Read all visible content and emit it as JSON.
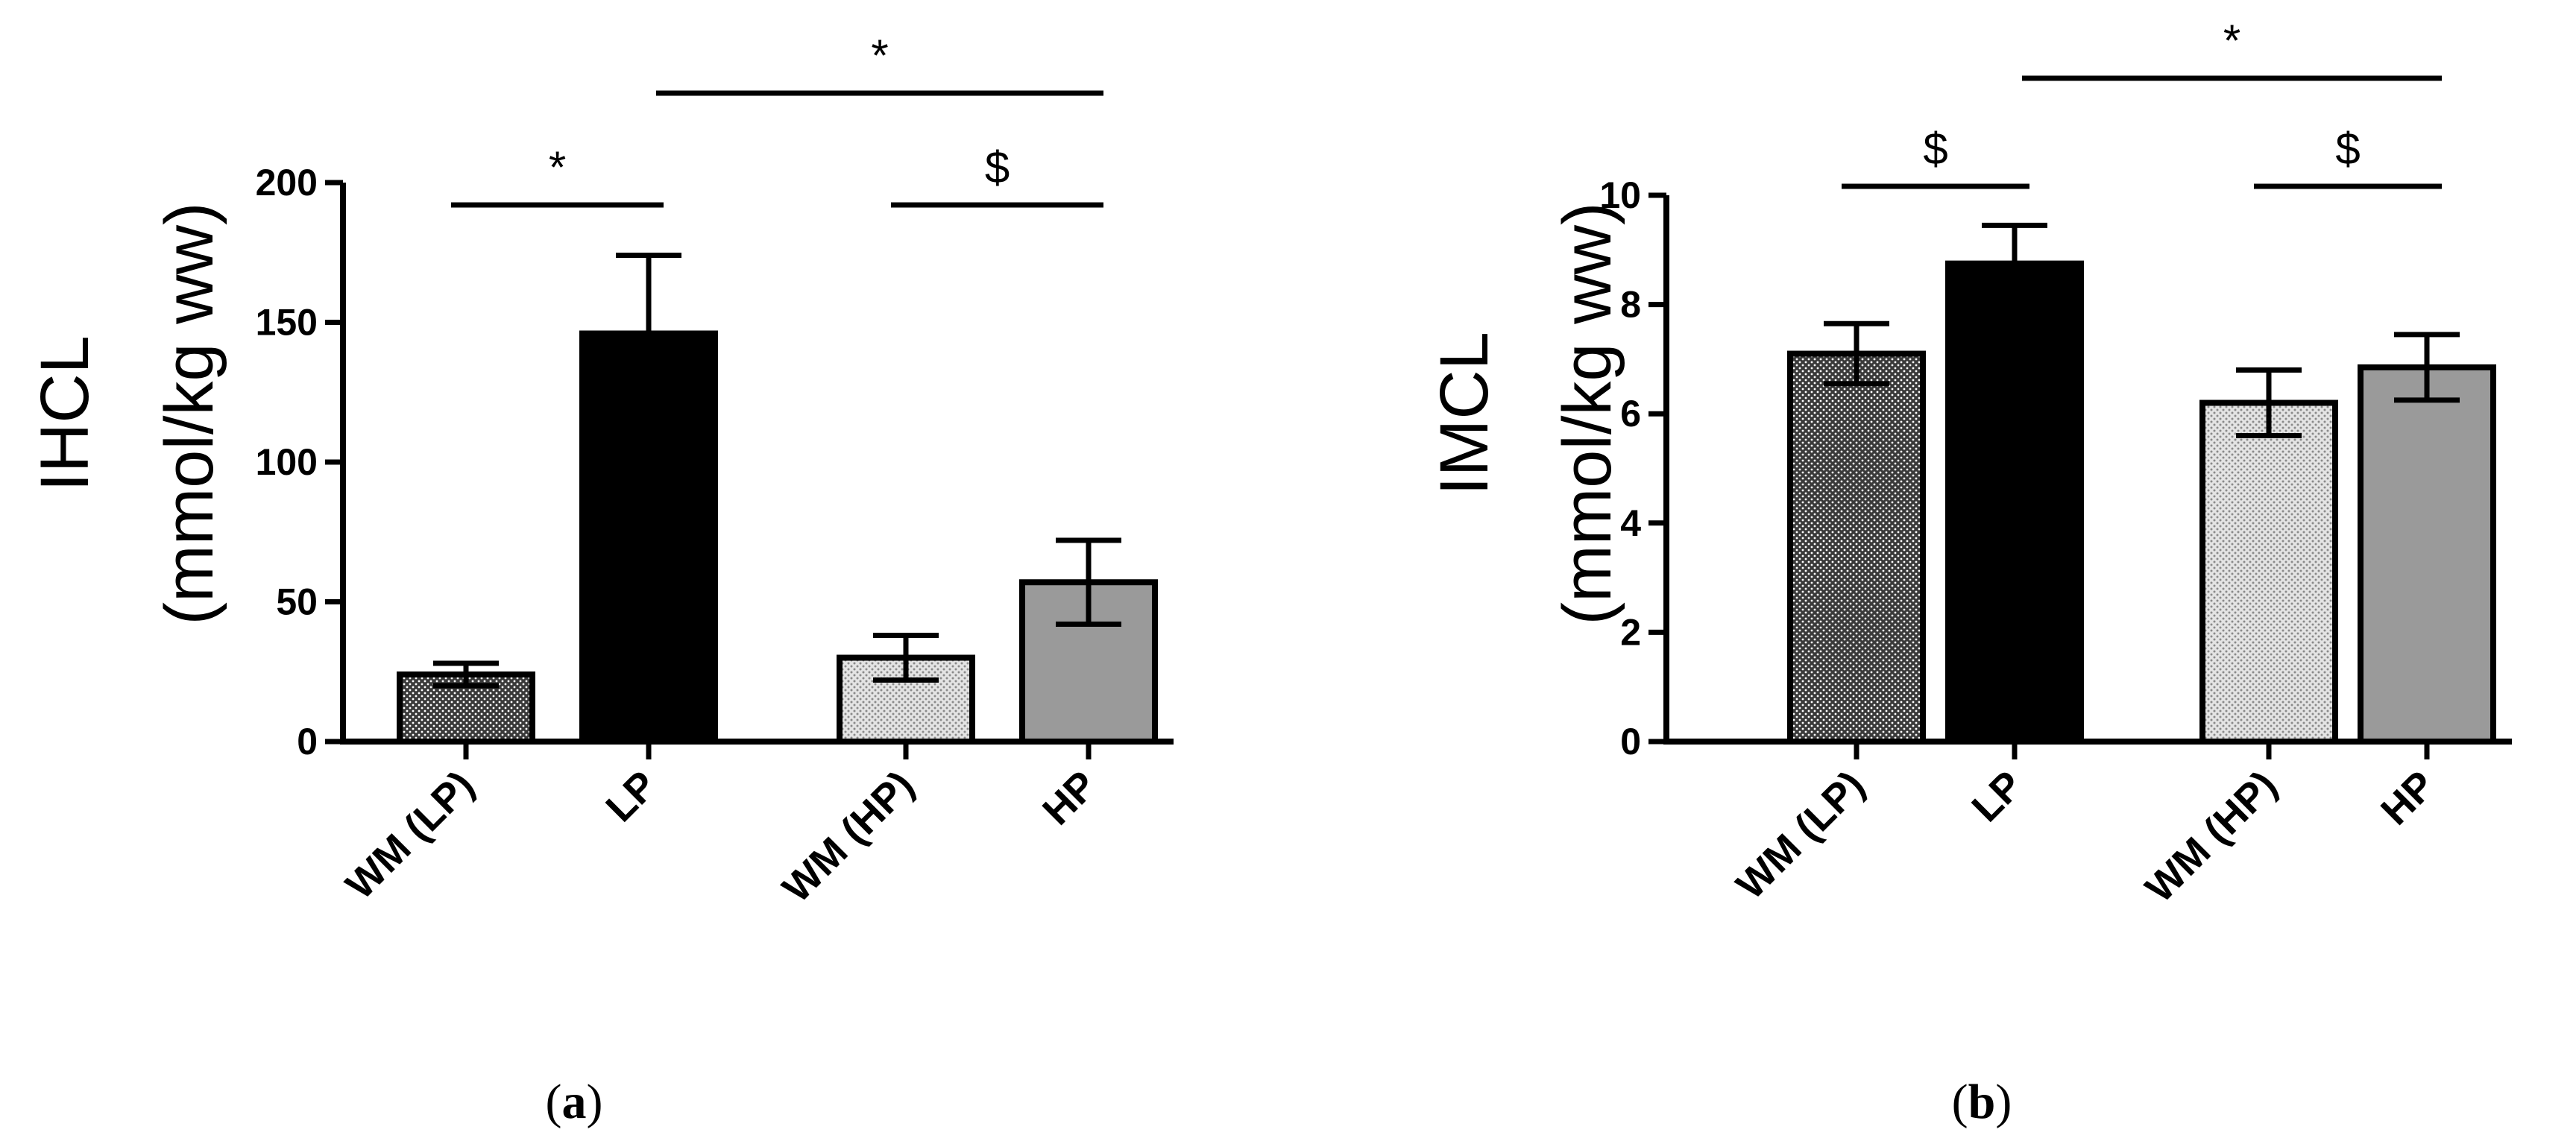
{
  "chart_data": [
    {
      "type": "bar",
      "panel_label": "a",
      "ylabel_line1": "IHCL",
      "ylabel_line2": "(mmol/kg ww)",
      "categories": [
        "WM (LP)",
        "LP",
        "WM (HP)",
        "HP"
      ],
      "values": [
        24,
        146,
        30,
        57
      ],
      "errors": [
        4,
        28,
        8,
        15
      ],
      "ylim": [
        0,
        200
      ],
      "yticks": [
        "0",
        "50",
        "100",
        "150",
        "200"
      ],
      "fills": [
        "dark-dotted",
        "black",
        "light-dotted",
        "gray"
      ],
      "colors": {
        "black": "#000000",
        "gray": "#9a9a9a",
        "dark_dot_bg": "#3a3a3a",
        "light_dot_bg": "#d0d0d0"
      },
      "significance": [
        {
          "from": 0,
          "to": 1,
          "label": "*"
        },
        {
          "from": 1,
          "to": 3,
          "label": "*"
        },
        {
          "from": 2,
          "to": 3,
          "label": "$"
        }
      ]
    },
    {
      "type": "bar",
      "panel_label": "b",
      "ylabel_line1": "IMCL",
      "ylabel_line2": "(mmol/kg ww)",
      "categories": [
        "WM (LP)",
        "LP",
        "WM (HP)",
        "HP"
      ],
      "values": [
        7.1,
        8.75,
        6.2,
        6.85
      ],
      "errors": [
        0.55,
        0.7,
        0.6,
        0.6
      ],
      "ylim": [
        0,
        10
      ],
      "yticks": [
        "0",
        "2",
        "4",
        "6",
        "8",
        "10"
      ],
      "fills": [
        "dark-dotted",
        "black",
        "light-dotted",
        "gray"
      ],
      "colors": {
        "black": "#000000",
        "gray": "#9a9a9a",
        "dark_dot_bg": "#3a3a3a",
        "light_dot_bg": "#d0d0d0"
      },
      "significance": [
        {
          "from": 0,
          "to": 1,
          "label": "$"
        },
        {
          "from": 1,
          "to": 3,
          "label": "*"
        },
        {
          "from": 2,
          "to": 3,
          "label": "$"
        }
      ]
    }
  ]
}
